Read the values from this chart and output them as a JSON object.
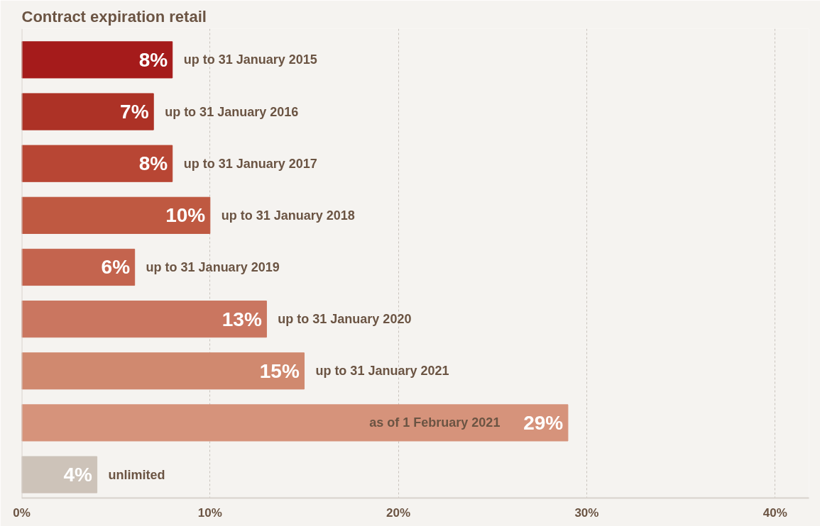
{
  "chart_data": {
    "type": "bar",
    "orientation": "horizontal",
    "title": "Contract expiration retail",
    "categories": [
      "up to 31 January 2015",
      "up to 31 January 2016",
      "up to 31 January 2017",
      "up to 31 January 2018",
      "up to 31 January 2019",
      "up to 31 January 2020",
      "up to 31 January 2021",
      "as of 1 February 2021",
      "unlimited"
    ],
    "values": [
      8,
      7,
      8,
      10,
      6,
      13,
      15,
      29,
      4
    ],
    "colors": [
      "#a51b1b",
      "#ad3226",
      "#b84634",
      "#bf5941",
      "#c4644e",
      "#ca7660",
      "#d0896f",
      "#d6937b",
      "#cdc3b9"
    ],
    "value_labels": [
      "8%",
      "7%",
      "8%",
      "10%",
      "6%",
      "13%",
      "15%",
      "29%",
      "4%"
    ],
    "xlim": [
      0,
      41.8
    ],
    "xticks": [
      {
        "value": 0,
        "label": "0%"
      },
      {
        "value": 10,
        "label": "10%"
      },
      {
        "value": 20,
        "label": "20%"
      },
      {
        "value": 30,
        "label": "30%"
      },
      {
        "value": 40,
        "label": "40%"
      }
    ],
    "grid": "x"
  }
}
